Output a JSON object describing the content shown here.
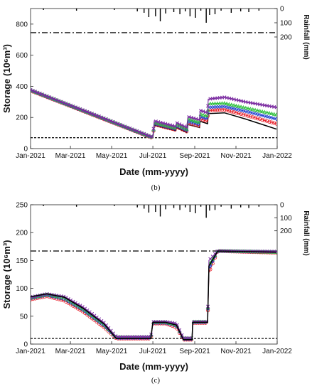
{
  "chart_data": [
    {
      "panel_label": "(b)",
      "type": "line",
      "xlabel": "Date (mm-yyyy)",
      "ylabel": "Storage (10⁶m³)",
      "right_ylabel": "Rainfall (mm)",
      "x_tick_labels": [
        "Jan-2021",
        "Mar-2021",
        "May-2021",
        "Jul-2021",
        "Sep-2021",
        "Nov-2021",
        "Jan-2022"
      ],
      "x_tick_dates": [
        "2021-01-01",
        "2021-03-01",
        "2021-05-01",
        "2021-07-01",
        "2021-09-01",
        "2021-11-01",
        "2022-01-01"
      ],
      "ylim": [
        0,
        900
      ],
      "y_ticks": [
        0,
        200,
        400,
        600,
        800
      ],
      "rain_ylim": [
        200,
        0
      ],
      "rain_ticks": [
        0,
        100,
        200
      ],
      "max_storage_line": 745,
      "min_storage_line": 70,
      "rainfall": {
        "dates": [
          "2021-01-20",
          "2021-03-10",
          "2021-05-05",
          "2021-06-08",
          "2021-06-18",
          "2021-06-25",
          "2021-07-05",
          "2021-07-12",
          "2021-07-20",
          "2021-08-01",
          "2021-08-10",
          "2021-08-18",
          "2021-08-25",
          "2021-09-02",
          "2021-09-10",
          "2021-09-18",
          "2021-09-23",
          "2021-10-01",
          "2021-10-10",
          "2021-10-25",
          "2021-11-08",
          "2021-11-20",
          "2021-12-05"
        ],
        "values": [
          10,
          15,
          10,
          20,
          30,
          60,
          55,
          90,
          35,
          25,
          40,
          20,
          55,
          65,
          15,
          100,
          45,
          40,
          15,
          30,
          20,
          25,
          15
        ]
      },
      "series": [
        {
          "color": "#000000",
          "marker": "none",
          "x": [
            "2021-01-01",
            "2021-06-28",
            "2021-07-01",
            "2021-07-03",
            "2021-08-04",
            "2021-08-05",
            "2021-08-20",
            "2021-08-22",
            "2021-09-08",
            "2021-09-09",
            "2021-09-20",
            "2021-09-21",
            "2021-10-15",
            "2021-11-15",
            "2021-12-31"
          ],
          "y": [
            370,
            70,
            70,
            150,
            115,
            135,
            105,
            155,
            135,
            175,
            160,
            225,
            230,
            190,
            125
          ]
        },
        {
          "color": "#e8202a",
          "marker": "circle",
          "x": [
            "2021-01-01",
            "2021-06-28",
            "2021-07-01",
            "2021-07-03",
            "2021-08-04",
            "2021-08-05",
            "2021-08-20",
            "2021-08-22",
            "2021-09-08",
            "2021-09-09",
            "2021-09-20",
            "2021-09-21",
            "2021-10-15",
            "2021-11-15",
            "2021-12-31"
          ],
          "y": [
            372,
            72,
            72,
            155,
            120,
            140,
            110,
            165,
            145,
            190,
            175,
            245,
            250,
            215,
            160
          ]
        },
        {
          "color": "#1f3fd0",
          "marker": "diamond",
          "x": [
            "2021-01-01",
            "2021-06-28",
            "2021-07-01",
            "2021-07-03",
            "2021-08-04",
            "2021-08-05",
            "2021-08-20",
            "2021-08-22",
            "2021-09-08",
            "2021-09-09",
            "2021-09-20",
            "2021-09-21",
            "2021-10-15",
            "2021-11-15",
            "2021-12-31"
          ],
          "y": [
            374,
            74,
            74,
            160,
            125,
            147,
            117,
            175,
            155,
            205,
            190,
            265,
            270,
            240,
            190
          ]
        },
        {
          "color": "#2bbf3a",
          "marker": "triangle",
          "x": [
            "2021-01-01",
            "2021-06-28",
            "2021-07-01",
            "2021-07-03",
            "2021-08-04",
            "2021-08-05",
            "2021-08-20",
            "2021-08-22",
            "2021-09-08",
            "2021-09-09",
            "2021-09-20",
            "2021-09-21",
            "2021-10-15",
            "2021-11-15",
            "2021-12-31"
          ],
          "y": [
            376,
            76,
            76,
            168,
            132,
            156,
            126,
            188,
            168,
            222,
            207,
            288,
            292,
            262,
            218
          ]
        },
        {
          "color": "#7a2aa0",
          "marker": "x",
          "x": [
            "2021-01-01",
            "2021-06-28",
            "2021-07-01",
            "2021-07-03",
            "2021-08-04",
            "2021-08-05",
            "2021-08-20",
            "2021-08-22",
            "2021-09-08",
            "2021-09-09",
            "2021-09-20",
            "2021-09-21",
            "2021-10-15",
            "2021-11-15",
            "2021-12-31"
          ],
          "y": [
            378,
            78,
            78,
            178,
            142,
            166,
            136,
            205,
            185,
            245,
            230,
            318,
            330,
            300,
            265
          ]
        }
      ]
    },
    {
      "panel_label": "(c)",
      "type": "line",
      "xlabel": "Date (mm-yyyy)",
      "ylabel": "Storage (10⁶m³)",
      "right_ylabel": "Rainfall (mm)",
      "x_tick_labels": [
        "Jan-2021",
        "Mar-2021",
        "May-2021",
        "Jul-2021",
        "Sep-2021",
        "Nov-2021",
        "Jan-2022"
      ],
      "x_tick_dates": [
        "2021-01-01",
        "2021-03-01",
        "2021-05-01",
        "2021-07-01",
        "2021-09-01",
        "2021-11-01",
        "2022-01-01"
      ],
      "ylim": [
        0,
        250
      ],
      "y_ticks": [
        0,
        50,
        100,
        150,
        200,
        250
      ],
      "rain_ylim": [
        300,
        0
      ],
      "rain_ticks": [
        0,
        100,
        200
      ],
      "max_storage_line": 167,
      "min_storage_line": 10,
      "rainfall": {
        "dates": [
          "2021-01-20",
          "2021-03-10",
          "2021-05-05",
          "2021-06-08",
          "2021-06-18",
          "2021-06-25",
          "2021-07-05",
          "2021-07-12",
          "2021-07-20",
          "2021-08-01",
          "2021-08-10",
          "2021-08-18",
          "2021-08-25",
          "2021-09-02",
          "2021-09-10",
          "2021-09-18",
          "2021-09-23",
          "2021-10-01",
          "2021-10-10",
          "2021-10-25",
          "2021-11-08",
          "2021-11-20",
          "2021-12-05"
        ],
        "values": [
          10,
          15,
          10,
          20,
          30,
          60,
          55,
          90,
          35,
          25,
          40,
          20,
          55,
          65,
          15,
          100,
          45,
          40,
          15,
          30,
          20,
          25,
          15
        ]
      },
      "series": [
        {
          "color": "#e8202a",
          "marker": "circle",
          "x": [
            "2021-01-01",
            "2021-01-25",
            "2021-02-20",
            "2021-03-20",
            "2021-04-20",
            "2021-05-08",
            "2021-06-28",
            "2021-07-01",
            "2021-07-20",
            "2021-08-05",
            "2021-08-15",
            "2021-08-28",
            "2021-08-29",
            "2021-09-20",
            "2021-09-22",
            "2021-10-05",
            "2021-12-31"
          ],
          "y": [
            80,
            86,
            78,
            58,
            30,
            10,
            10,
            37,
            37,
            30,
            8,
            8,
            38,
            38,
            128,
            167,
            164
          ]
        },
        {
          "color": "#1f3fd0",
          "marker": "diamond",
          "x": [
            "2021-01-01",
            "2021-01-25",
            "2021-02-20",
            "2021-03-20",
            "2021-04-20",
            "2021-05-08",
            "2021-06-28",
            "2021-07-01",
            "2021-07-20",
            "2021-08-05",
            "2021-08-15",
            "2021-08-28",
            "2021-08-29",
            "2021-09-20",
            "2021-09-22",
            "2021-10-05",
            "2021-12-31"
          ],
          "y": [
            82,
            88,
            81,
            61,
            33,
            11,
            11,
            38,
            38,
            33,
            9,
            9,
            39,
            39,
            135,
            167,
            165
          ]
        },
        {
          "color": "#2bbf3a",
          "marker": "triangle",
          "x": [
            "2021-01-01",
            "2021-01-25",
            "2021-02-20",
            "2021-03-20",
            "2021-04-20",
            "2021-05-08",
            "2021-06-28",
            "2021-07-01",
            "2021-07-20",
            "2021-08-05",
            "2021-08-15",
            "2021-08-28",
            "2021-08-29",
            "2021-09-20",
            "2021-09-22",
            "2021-10-05",
            "2021-12-31"
          ],
          "y": [
            83,
            89,
            83,
            63,
            35,
            12,
            12,
            39,
            39,
            35,
            10,
            10,
            40,
            40,
            142,
            167,
            165
          ]
        },
        {
          "color": "#7a2aa0",
          "marker": "x",
          "x": [
            "2021-01-01",
            "2021-01-25",
            "2021-02-20",
            "2021-03-20",
            "2021-04-20",
            "2021-05-08",
            "2021-06-28",
            "2021-07-01",
            "2021-07-20",
            "2021-08-05",
            "2021-08-15",
            "2021-08-28",
            "2021-08-29",
            "2021-09-20",
            "2021-09-22",
            "2021-10-05",
            "2021-12-31"
          ],
          "y": [
            84,
            90,
            85,
            66,
            38,
            13,
            13,
            40,
            40,
            37,
            11,
            11,
            40,
            40,
            150,
            167,
            166
          ]
        },
        {
          "color": "#000000",
          "marker": "none",
          "x": [
            "2021-01-01",
            "2021-01-25",
            "2021-02-20",
            "2021-03-20",
            "2021-04-20",
            "2021-05-08",
            "2021-06-28",
            "2021-07-01",
            "2021-07-20",
            "2021-08-05",
            "2021-08-15",
            "2021-08-28",
            "2021-08-29",
            "2021-09-20",
            "2021-09-22",
            "2021-10-05",
            "2021-12-31"
          ],
          "y": [
            85,
            90,
            84,
            64,
            36,
            10,
            10,
            39,
            39,
            34,
            8,
            8,
            39,
            39,
            140,
            167,
            165
          ]
        }
      ]
    }
  ]
}
